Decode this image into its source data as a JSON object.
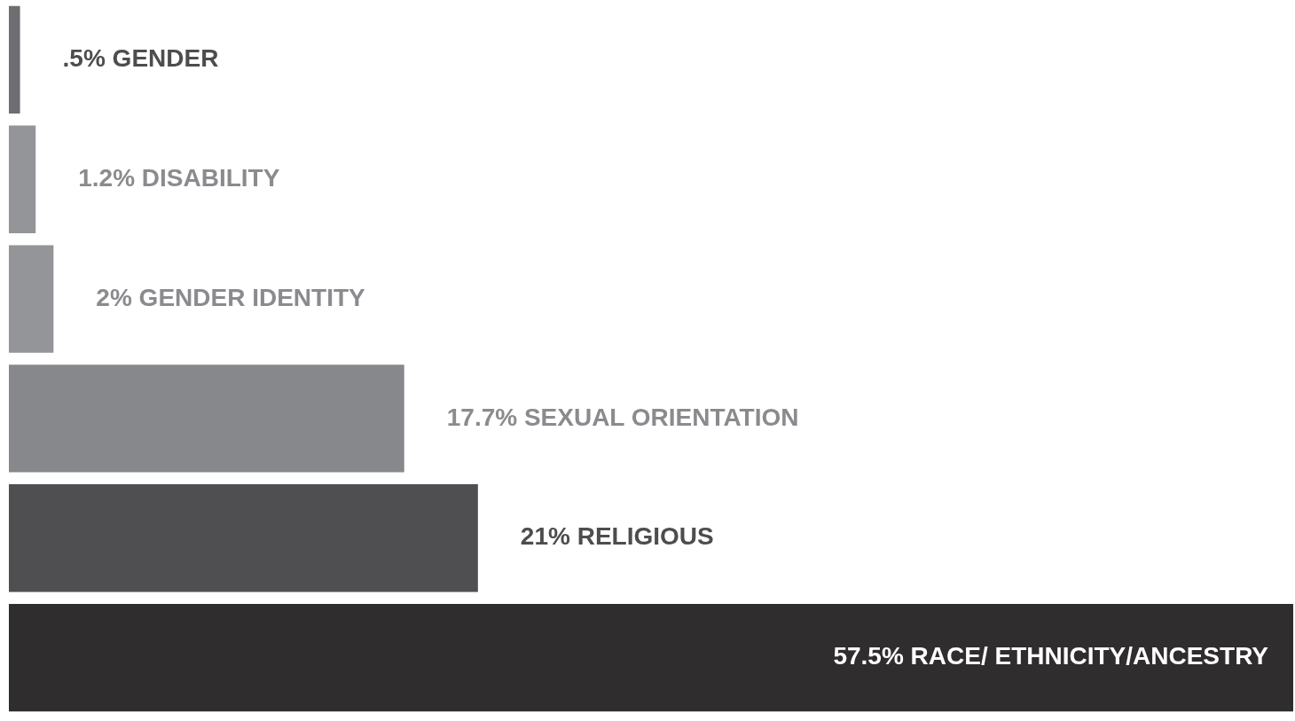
{
  "chart_data": {
    "type": "bar",
    "orientation": "horizontal",
    "categories": [
      "GENDER",
      "DISABILITY",
      "GENDER IDENTITY",
      "SEXUAL ORIENTATION",
      "RELIGIOUS",
      "RACE/ ETHNICITY/ANCESTRY"
    ],
    "values": [
      0.5,
      1.2,
      2,
      17.7,
      21,
      57.5
    ],
    "value_labels": [
      ".5%",
      "1.2%",
      "2%",
      "17.7%",
      "21%",
      "57.5%"
    ],
    "colors": [
      "#6d6e71",
      "#939598",
      "#939598",
      "#87888c",
      "#4f4f51",
      "#2f2d2e"
    ]
  }
}
